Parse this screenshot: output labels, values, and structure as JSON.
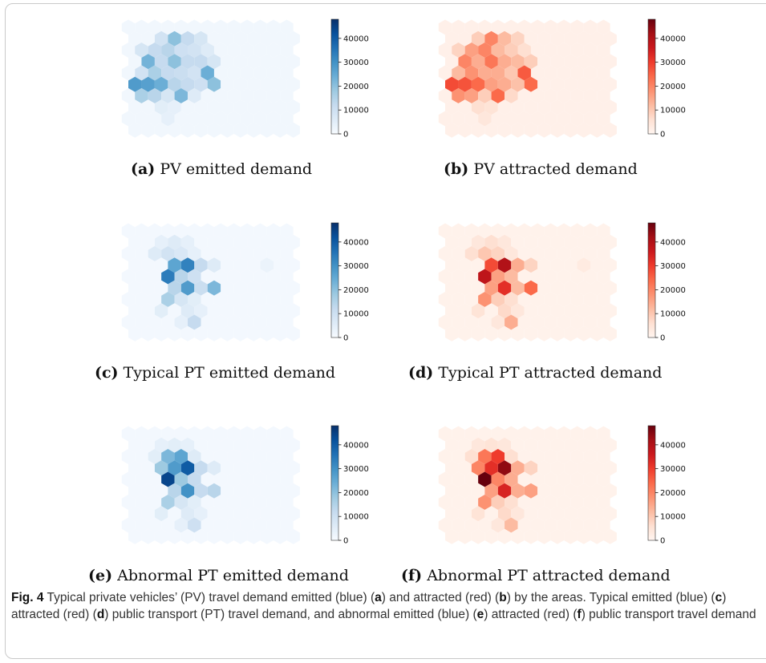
{
  "caption": {
    "fig_label": "Fig. 4",
    "segments": [
      {
        "t": " Typical private vehicles’ (PV) travel demand emitted (blue) (",
        "b": false
      },
      {
        "t": "a",
        "b": true
      },
      {
        "t": ") and attracted (red) (",
        "b": false
      },
      {
        "t": "b",
        "b": true
      },
      {
        "t": ") by the areas. Typical emitted (blue) (",
        "b": false
      },
      {
        "t": "c",
        "b": true
      },
      {
        "t": ") attracted (red) (",
        "b": false
      },
      {
        "t": "d",
        "b": true
      },
      {
        "t": ") public transport (PT) travel demand, and abnormal emitted (blue) (",
        "b": false
      },
      {
        "t": "e",
        "b": true
      },
      {
        "t": ") attracted (red) (",
        "b": false
      },
      {
        "t": "f",
        "b": true
      },
      {
        "t": ") public transport travel demand",
        "b": false
      }
    ]
  },
  "colors": {
    "blues": [
      "#f7fbff",
      "#deebf7",
      "#c6dbef",
      "#9ecae1",
      "#6baed6",
      "#4292c6",
      "#2171b5",
      "#08519c",
      "#08306b"
    ],
    "reds": [
      "#fff5f0",
      "#fee0d2",
      "#fcbba1",
      "#fc9272",
      "#fb6a4a",
      "#ef3b2c",
      "#cb181d",
      "#a50f15",
      "#67000d"
    ]
  },
  "chart_data": [
    {
      "type": "heatmap",
      "id": "a",
      "label": "(a)",
      "title": "PV emitted demand",
      "colormap": "blues",
      "colorbar_ticks": [
        0,
        10000,
        20000,
        30000,
        40000
      ],
      "vmin": 0,
      "vmax": 48000,
      "grid": {
        "cols": 13,
        "rows": 10
      },
      "base_value": 1500,
      "cells": [
        {
          "c": 2,
          "r": 1,
          "v": 9000
        },
        {
          "c": 3,
          "r": 1,
          "v": 20000
        },
        {
          "c": 4,
          "r": 1,
          "v": 12000
        },
        {
          "c": 5,
          "r": 1,
          "v": 8000
        },
        {
          "c": 1,
          "r": 2,
          "v": 8000
        },
        {
          "c": 2,
          "r": 2,
          "v": 12000
        },
        {
          "c": 3,
          "r": 2,
          "v": 14000
        },
        {
          "c": 4,
          "r": 2,
          "v": 10000
        },
        {
          "c": 5,
          "r": 2,
          "v": 9000
        },
        {
          "c": 6,
          "r": 2,
          "v": 6000
        },
        {
          "c": 1,
          "r": 3,
          "v": 23000
        },
        {
          "c": 2,
          "r": 3,
          "v": 12000
        },
        {
          "c": 3,
          "r": 3,
          "v": 20000
        },
        {
          "c": 4,
          "r": 3,
          "v": 12000
        },
        {
          "c": 5,
          "r": 3,
          "v": 12000
        },
        {
          "c": 6,
          "r": 3,
          "v": 8000
        },
        {
          "c": 1,
          "r": 4,
          "v": 9000
        },
        {
          "c": 2,
          "r": 4,
          "v": 16000
        },
        {
          "c": 3,
          "r": 4,
          "v": 12000
        },
        {
          "c": 4,
          "r": 4,
          "v": 11000
        },
        {
          "c": 5,
          "r": 4,
          "v": 9000
        },
        {
          "c": 6,
          "r": 4,
          "v": 24000
        },
        {
          "c": 0,
          "r": 5,
          "v": 28000
        },
        {
          "c": 1,
          "r": 5,
          "v": 27000
        },
        {
          "c": 2,
          "r": 5,
          "v": 24000
        },
        {
          "c": 3,
          "r": 5,
          "v": 14000
        },
        {
          "c": 4,
          "r": 5,
          "v": 12000
        },
        {
          "c": 5,
          "r": 5,
          "v": 10000
        },
        {
          "c": 6,
          "r": 5,
          "v": 20000
        },
        {
          "c": 1,
          "r": 6,
          "v": 16000
        },
        {
          "c": 2,
          "r": 6,
          "v": 14000
        },
        {
          "c": 3,
          "r": 6,
          "v": 8000
        },
        {
          "c": 4,
          "r": 6,
          "v": 22000
        },
        {
          "c": 5,
          "r": 6,
          "v": 6000
        },
        {
          "c": 2,
          "r": 7,
          "v": 5000
        },
        {
          "c": 3,
          "r": 7,
          "v": 4000
        },
        {
          "c": 3,
          "r": 8,
          "v": 4000
        }
      ]
    },
    {
      "type": "heatmap",
      "id": "b",
      "label": "(b)",
      "title": "PV attracted demand",
      "colormap": "reds",
      "colorbar_ticks": [
        0,
        10000,
        20000,
        30000,
        40000
      ],
      "vmin": 0,
      "vmax": 48000,
      "grid": {
        "cols": 13,
        "rows": 10
      },
      "base_value": 1500,
      "cells": [
        {
          "c": 2,
          "r": 1,
          "v": 9000
        },
        {
          "c": 3,
          "r": 1,
          "v": 20000
        },
        {
          "c": 4,
          "r": 1,
          "v": 12000
        },
        {
          "c": 5,
          "r": 1,
          "v": 8000
        },
        {
          "c": 1,
          "r": 2,
          "v": 8000
        },
        {
          "c": 2,
          "r": 2,
          "v": 16000
        },
        {
          "c": 3,
          "r": 2,
          "v": 20000
        },
        {
          "c": 4,
          "r": 2,
          "v": 12000
        },
        {
          "c": 5,
          "r": 2,
          "v": 9000
        },
        {
          "c": 6,
          "r": 2,
          "v": 6000
        },
        {
          "c": 1,
          "r": 3,
          "v": 20000
        },
        {
          "c": 2,
          "r": 3,
          "v": 14000
        },
        {
          "c": 3,
          "r": 3,
          "v": 22000
        },
        {
          "c": 4,
          "r": 3,
          "v": 14000
        },
        {
          "c": 5,
          "r": 3,
          "v": 12000
        },
        {
          "c": 6,
          "r": 3,
          "v": 9000
        },
        {
          "c": 1,
          "r": 4,
          "v": 12000
        },
        {
          "c": 2,
          "r": 4,
          "v": 18000
        },
        {
          "c": 3,
          "r": 4,
          "v": 14000
        },
        {
          "c": 4,
          "r": 4,
          "v": 14000
        },
        {
          "c": 5,
          "r": 4,
          "v": 10000
        },
        {
          "c": 6,
          "r": 4,
          "v": 26000
        },
        {
          "c": 0,
          "r": 5,
          "v": 28000
        },
        {
          "c": 1,
          "r": 5,
          "v": 27000
        },
        {
          "c": 2,
          "r": 5,
          "v": 24000
        },
        {
          "c": 3,
          "r": 5,
          "v": 16000
        },
        {
          "c": 4,
          "r": 5,
          "v": 14000
        },
        {
          "c": 5,
          "r": 5,
          "v": 11000
        },
        {
          "c": 6,
          "r": 5,
          "v": 24000
        },
        {
          "c": 1,
          "r": 6,
          "v": 18000
        },
        {
          "c": 2,
          "r": 6,
          "v": 16000
        },
        {
          "c": 3,
          "r": 6,
          "v": 9000
        },
        {
          "c": 4,
          "r": 6,
          "v": 24000
        },
        {
          "c": 5,
          "r": 6,
          "v": 7000
        },
        {
          "c": 2,
          "r": 7,
          "v": 6000
        },
        {
          "c": 3,
          "r": 7,
          "v": 5000
        },
        {
          "c": 3,
          "r": 8,
          "v": 4000
        }
      ]
    },
    {
      "type": "heatmap",
      "id": "c",
      "label": "(c)",
      "title": "Typical PT emitted demand",
      "colormap": "blues",
      "colorbar_ticks": [
        0,
        10000,
        20000,
        30000,
        40000
      ],
      "vmin": 0,
      "vmax": 48000,
      "grid": {
        "cols": 13,
        "rows": 10
      },
      "base_value": 1000,
      "cells": [
        {
          "c": 2,
          "r": 1,
          "v": 4000
        },
        {
          "c": 3,
          "r": 1,
          "v": 6000
        },
        {
          "c": 4,
          "r": 1,
          "v": 4000
        },
        {
          "c": 2,
          "r": 2,
          "v": 6000
        },
        {
          "c": 3,
          "r": 2,
          "v": 9000
        },
        {
          "c": 4,
          "r": 2,
          "v": 7000
        },
        {
          "c": 5,
          "r": 2,
          "v": 4000
        },
        {
          "c": 3,
          "r": 3,
          "v": 26000
        },
        {
          "c": 4,
          "r": 3,
          "v": 33000
        },
        {
          "c": 5,
          "r": 3,
          "v": 12000
        },
        {
          "c": 6,
          "r": 3,
          "v": 6000
        },
        {
          "c": 10,
          "r": 3,
          "v": 3000
        },
        {
          "c": 3,
          "r": 4,
          "v": 34000
        },
        {
          "c": 4,
          "r": 4,
          "v": 14000
        },
        {
          "c": 5,
          "r": 4,
          "v": 10000
        },
        {
          "c": 3,
          "r": 5,
          "v": 14000
        },
        {
          "c": 4,
          "r": 5,
          "v": 28000
        },
        {
          "c": 5,
          "r": 5,
          "v": 11000
        },
        {
          "c": 6,
          "r": 5,
          "v": 22000
        },
        {
          "c": 3,
          "r": 6,
          "v": 16000
        },
        {
          "c": 4,
          "r": 6,
          "v": 8000
        },
        {
          "c": 5,
          "r": 6,
          "v": 5000
        },
        {
          "c": 2,
          "r": 7,
          "v": 5000
        },
        {
          "c": 4,
          "r": 7,
          "v": 6000
        },
        {
          "c": 5,
          "r": 7,
          "v": 4000
        },
        {
          "c": 4,
          "r": 8,
          "v": 4000
        },
        {
          "c": 5,
          "r": 8,
          "v": 12000
        }
      ]
    },
    {
      "type": "heatmap",
      "id": "d",
      "label": "(d)",
      "title": "Typical PT attracted demand",
      "colormap": "reds",
      "colorbar_ticks": [
        0,
        10000,
        20000,
        30000,
        40000
      ],
      "vmin": 0,
      "vmax": 48000,
      "grid": {
        "cols": 13,
        "rows": 10
      },
      "base_value": 1000,
      "cells": [
        {
          "c": 2,
          "r": 1,
          "v": 4000
        },
        {
          "c": 3,
          "r": 1,
          "v": 6000
        },
        {
          "c": 4,
          "r": 1,
          "v": 4000
        },
        {
          "c": 2,
          "r": 2,
          "v": 6000
        },
        {
          "c": 3,
          "r": 2,
          "v": 10000
        },
        {
          "c": 4,
          "r": 2,
          "v": 8000
        },
        {
          "c": 5,
          "r": 2,
          "v": 4000
        },
        {
          "c": 3,
          "r": 3,
          "v": 28000
        },
        {
          "c": 4,
          "r": 3,
          "v": 40000
        },
        {
          "c": 5,
          "r": 3,
          "v": 14000
        },
        {
          "c": 6,
          "r": 3,
          "v": 8000
        },
        {
          "c": 10,
          "r": 3,
          "v": 3000
        },
        {
          "c": 3,
          "r": 4,
          "v": 38000
        },
        {
          "c": 4,
          "r": 4,
          "v": 16000
        },
        {
          "c": 5,
          "r": 4,
          "v": 12000
        },
        {
          "c": 3,
          "r": 5,
          "v": 16000
        },
        {
          "c": 4,
          "r": 5,
          "v": 32000
        },
        {
          "c": 5,
          "r": 5,
          "v": 12000
        },
        {
          "c": 6,
          "r": 5,
          "v": 24000
        },
        {
          "c": 3,
          "r": 6,
          "v": 18000
        },
        {
          "c": 4,
          "r": 6,
          "v": 9000
        },
        {
          "c": 5,
          "r": 6,
          "v": 6000
        },
        {
          "c": 2,
          "r": 7,
          "v": 5000
        },
        {
          "c": 4,
          "r": 7,
          "v": 7000
        },
        {
          "c": 5,
          "r": 7,
          "v": 4000
        },
        {
          "c": 4,
          "r": 8,
          "v": 4000
        },
        {
          "c": 5,
          "r": 8,
          "v": 14000
        }
      ]
    },
    {
      "type": "heatmap",
      "id": "e",
      "label": "(e)",
      "title": "Abnormal PT emitted demand",
      "colormap": "blues",
      "colorbar_ticks": [
        0,
        10000,
        20000,
        30000,
        40000
      ],
      "vmin": 0,
      "vmax": 48000,
      "grid": {
        "cols": 13,
        "rows": 10
      },
      "base_value": 1000,
      "cells": [
        {
          "c": 2,
          "r": 1,
          "v": 4000
        },
        {
          "c": 3,
          "r": 1,
          "v": 5000
        },
        {
          "c": 4,
          "r": 1,
          "v": 4000
        },
        {
          "c": 2,
          "r": 2,
          "v": 5000
        },
        {
          "c": 3,
          "r": 2,
          "v": 22000
        },
        {
          "c": 4,
          "r": 2,
          "v": 26000
        },
        {
          "c": 5,
          "r": 2,
          "v": 6000
        },
        {
          "c": 2,
          "r": 3,
          "v": 18000
        },
        {
          "c": 3,
          "r": 3,
          "v": 28000
        },
        {
          "c": 4,
          "r": 3,
          "v": 40000
        },
        {
          "c": 5,
          "r": 3,
          "v": 12000
        },
        {
          "c": 6,
          "r": 3,
          "v": 6000
        },
        {
          "c": 3,
          "r": 4,
          "v": 44000
        },
        {
          "c": 4,
          "r": 4,
          "v": 18000
        },
        {
          "c": 5,
          "r": 4,
          "v": 12000
        },
        {
          "c": 3,
          "r": 5,
          "v": 14000
        },
        {
          "c": 4,
          "r": 5,
          "v": 30000
        },
        {
          "c": 5,
          "r": 5,
          "v": 12000
        },
        {
          "c": 6,
          "r": 5,
          "v": 14000
        },
        {
          "c": 3,
          "r": 6,
          "v": 16000
        },
        {
          "c": 4,
          "r": 6,
          "v": 8000
        },
        {
          "c": 5,
          "r": 6,
          "v": 5000
        },
        {
          "c": 2,
          "r": 7,
          "v": 5000
        },
        {
          "c": 4,
          "r": 7,
          "v": 6000
        },
        {
          "c": 5,
          "r": 7,
          "v": 4000
        },
        {
          "c": 4,
          "r": 8,
          "v": 4000
        },
        {
          "c": 5,
          "r": 8,
          "v": 10000
        }
      ]
    },
    {
      "type": "heatmap",
      "id": "f",
      "label": "(f)",
      "title": "Abnormal PT attracted demand",
      "colormap": "reds",
      "colorbar_ticks": [
        0,
        10000,
        20000,
        30000,
        40000
      ],
      "vmin": 0,
      "vmax": 48000,
      "grid": {
        "cols": 13,
        "rows": 10
      },
      "base_value": 1000,
      "cells": [
        {
          "c": 2,
          "r": 1,
          "v": 4000
        },
        {
          "c": 3,
          "r": 1,
          "v": 5000
        },
        {
          "c": 4,
          "r": 1,
          "v": 4000
        },
        {
          "c": 2,
          "r": 2,
          "v": 6000
        },
        {
          "c": 3,
          "r": 2,
          "v": 22000
        },
        {
          "c": 4,
          "r": 2,
          "v": 30000
        },
        {
          "c": 5,
          "r": 2,
          "v": 6000
        },
        {
          "c": 2,
          "r": 3,
          "v": 20000
        },
        {
          "c": 3,
          "r": 3,
          "v": 32000
        },
        {
          "c": 4,
          "r": 3,
          "v": 44000
        },
        {
          "c": 5,
          "r": 3,
          "v": 14000
        },
        {
          "c": 6,
          "r": 3,
          "v": 8000
        },
        {
          "c": 3,
          "r": 4,
          "v": 48000
        },
        {
          "c": 4,
          "r": 4,
          "v": 20000
        },
        {
          "c": 5,
          "r": 4,
          "v": 14000
        },
        {
          "c": 3,
          "r": 5,
          "v": 16000
        },
        {
          "c": 4,
          "r": 5,
          "v": 34000
        },
        {
          "c": 5,
          "r": 5,
          "v": 14000
        },
        {
          "c": 6,
          "r": 5,
          "v": 16000
        },
        {
          "c": 3,
          "r": 6,
          "v": 18000
        },
        {
          "c": 4,
          "r": 6,
          "v": 9000
        },
        {
          "c": 5,
          "r": 6,
          "v": 6000
        },
        {
          "c": 2,
          "r": 7,
          "v": 5000
        },
        {
          "c": 4,
          "r": 7,
          "v": 7000
        },
        {
          "c": 5,
          "r": 7,
          "v": 4000
        },
        {
          "c": 4,
          "r": 8,
          "v": 4000
        },
        {
          "c": 5,
          "r": 8,
          "v": 12000
        }
      ]
    }
  ]
}
